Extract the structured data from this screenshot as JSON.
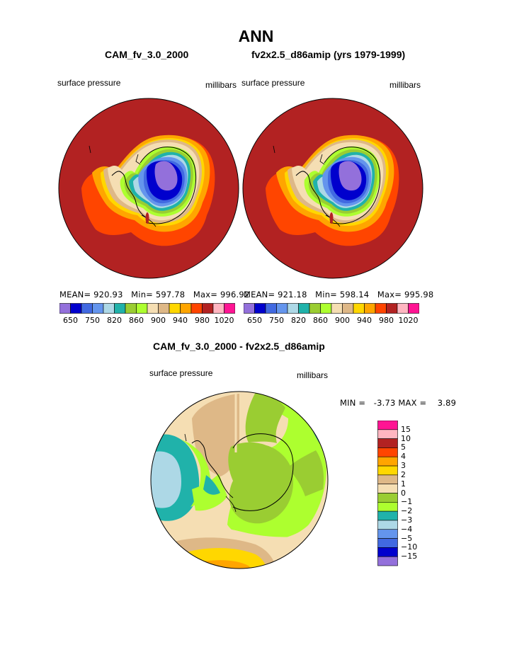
{
  "title": "ANN",
  "panels": [
    {
      "heading": "CAM_fv_3.0_2000",
      "left_label": "surface pressure",
      "right_label": "millibars",
      "stats": {
        "mean": "MEAN= 920.93",
        "min": "Min= 597.78",
        "max": "Max= 996.92"
      }
    },
    {
      "heading": "fv2x2.5_d86amip (yrs 1979-1999)",
      "left_label": "surface pressure",
      "right_label": "millibars",
      "stats": {
        "mean": "MEAN= 921.18",
        "min": "Min= 598.14",
        "max": "Max= 995.98"
      }
    }
  ],
  "abs_colorbar": {
    "colors": [
      "#9370db",
      "#0000cd",
      "#4169e1",
      "#6495ed",
      "#add8e6",
      "#20b2aa",
      "#9acd32",
      "#adff2f",
      "#f5deb3",
      "#deb887",
      "#ffd700",
      "#ffa500",
      "#ff4500",
      "#b22222",
      "#ffb6c1",
      "#ff1493"
    ],
    "labels": [
      "650",
      "750",
      "820",
      "860",
      "900",
      "940",
      "980",
      "1020"
    ]
  },
  "diff_panel": {
    "heading": "CAM_fv_3.0_2000 - fv2x2.5_d86amip",
    "left_label": "surface pressure",
    "right_label": "millibars",
    "stats": "MIN =   -3.73 MAX =    3.89"
  },
  "diff_colorbar": {
    "colors": [
      "#ff1493",
      "#ffb6c1",
      "#b22222",
      "#ff4500",
      "#ffa500",
      "#ffd700",
      "#deb887",
      "#f5deb3",
      "#9acd32",
      "#adff2f",
      "#20b2aa",
      "#add8e6",
      "#6495ed",
      "#4169e1",
      "#0000cd",
      "#9370db"
    ],
    "labels": [
      "15",
      "10",
      "5",
      "4",
      "3",
      "2",
      "1",
      "0",
      "−1",
      "−2",
      "−3",
      "−4",
      "−5",
      "−10",
      "−15"
    ]
  }
}
